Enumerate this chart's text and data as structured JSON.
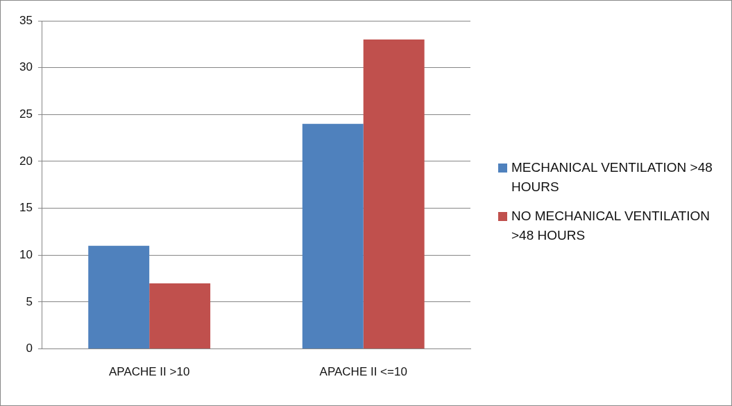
{
  "chart_data": {
    "type": "bar",
    "categories": [
      "APACHE II >10",
      "APACHE II <=10"
    ],
    "series": [
      {
        "name": "MECHANICAL VENTILATION >48 HOURS",
        "color": "#4f81bd",
        "values": [
          11,
          24
        ]
      },
      {
        "name": "NO MECHANICAL VENTILATION >48 HOURS",
        "color": "#c0504d",
        "values": [
          7,
          33
        ]
      }
    ],
    "ylim": [
      0,
      35
    ],
    "yticks": [
      0,
      5,
      10,
      15,
      20,
      25,
      30,
      35
    ],
    "grid": "y",
    "legend": "right"
  }
}
